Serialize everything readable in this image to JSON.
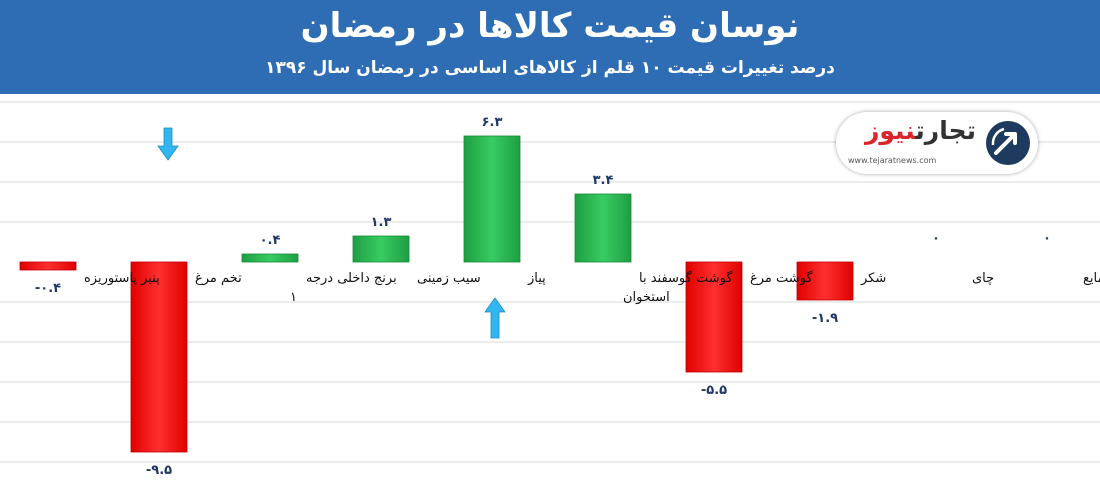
{
  "header": {
    "title": "نوسان قیمت کالاها در رمضان",
    "subtitle": "درصد تغییرات قیمت ۱۰ قلم از کالاهای اساسی در رمضان سال ۱۳۹۶"
  },
  "logo": {
    "name_part1": "تجارت",
    "name_part2": "نیوز",
    "url": "www.tejaratnews.com"
  },
  "colors": {
    "header_bg": "#2e6db4",
    "positive": "#22b24c",
    "negative": "#ff1a1a",
    "arrow": "#33b5f0",
    "value_text": "#1f3864"
  },
  "chart_data": {
    "type": "bar",
    "categories": [
      "پنیر پاستوریزه",
      "تخم مرغ",
      "برنج داخلی درجه ۱",
      "سیب زمینی",
      "پیاز",
      "گوشت گوسفند با استخوان",
      "گوشت مرغ",
      "شکر",
      "چای",
      "روغن مایع"
    ],
    "values": [
      -0.4,
      -9.5,
      0.4,
      1.3,
      6.3,
      3.4,
      -5.5,
      -1.9,
      0,
      0
    ],
    "value_labels": [
      "-۰.۴",
      "-۹.۵",
      "۰.۴",
      "۱.۳",
      "۶.۳",
      "۳.۴",
      "-۵.۵",
      "-۱.۹",
      "۰",
      "۰"
    ],
    "arrows": [
      {
        "category": "تخم مرغ",
        "direction": "down"
      },
      {
        "category": "پیاز",
        "direction": "up"
      }
    ],
    "ylim": [
      -10,
      8
    ],
    "grid": true,
    "legend": "none",
    "title": "نوسان قیمت کالاها در رمضان",
    "subtitle": "درصد تغییرات قیمت ۱۰ قلم از کالاهای اساسی در رمضان سال ۱۳۹۶"
  }
}
